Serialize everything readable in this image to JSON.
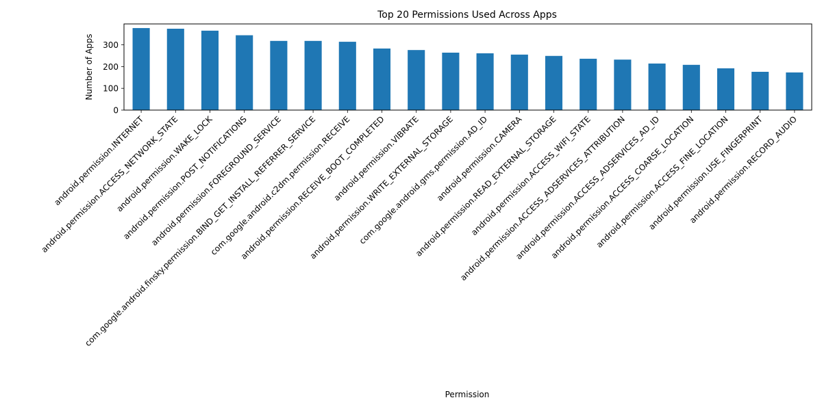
{
  "chart_data": {
    "type": "bar",
    "title": "Top 20 Permissions Used Across Apps",
    "xlabel": "Permission",
    "ylabel": "Number of Apps",
    "ylim": [
      0,
      396
    ],
    "yticks": [
      0,
      100,
      200,
      300
    ],
    "grid": false,
    "legend": "none",
    "bar_color": "#1f77b4",
    "categories": [
      "android.permission.INTERNET",
      "android.permission.ACCESS_NETWORK_STATE",
      "android.permission.WAKE_LOCK",
      "android.permission.POST_NOTIFICATIONS",
      "android.permission.FOREGROUND_SERVICE",
      "com.google.android.finsky.permission.BIND_GET_INSTALL_REFERRER_SERVICE",
      "com.google.android.c2dm.permission.RECEIVE",
      "android.permission.RECEIVE_BOOT_COMPLETED",
      "android.permission.VIBRATE",
      "android.permission.WRITE_EXTERNAL_STORAGE",
      "com.google.android.gms.permission.AD_ID",
      "android.permission.CAMERA",
      "android.permission.READ_EXTERNAL_STORAGE",
      "android.permission.ACCESS_WIFI_STATE",
      "android.permission.ACCESS_ADSERVICES_ATTRIBUTION",
      "android.permission.ACCESS_ADSERVICES_AD_ID",
      "android.permission.ACCESS_COARSE_LOCATION",
      "android.permission.ACCESS_FINE_LOCATION",
      "android.permission.USE_FINGERPRINT",
      "android.permission.RECORD_AUDIO"
    ],
    "values": [
      377,
      374,
      365,
      344,
      318,
      318,
      314,
      283,
      276,
      264,
      261,
      255,
      249,
      236,
      232,
      214,
      208,
      192,
      176,
      173
    ]
  }
}
